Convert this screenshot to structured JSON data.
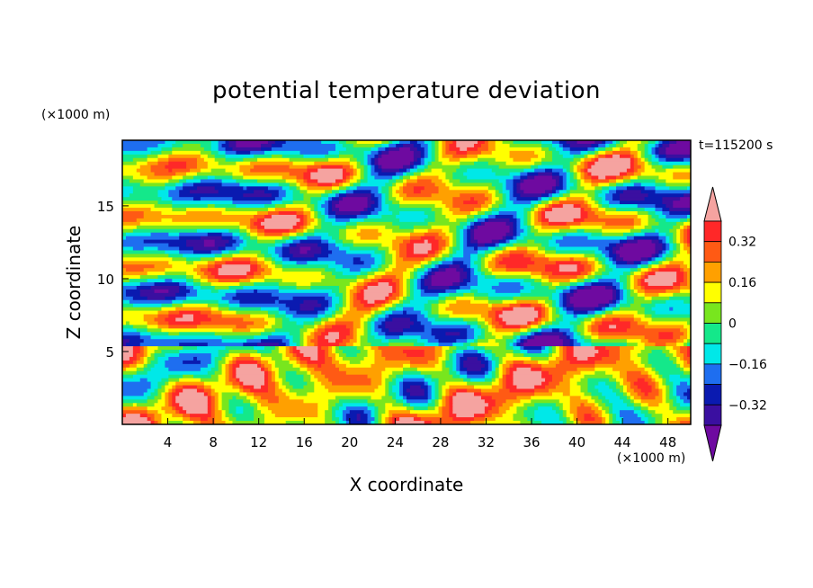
{
  "chart_data": {
    "type": "heatmap",
    "title": "potential temperature deviation",
    "time_label": "t=115200 s",
    "xlabel": "X coordinate",
    "ylabel": "Z coordinate",
    "x_units": "(×1000 m)",
    "y_units": "(×1000 m)",
    "xlim": [
      0,
      50
    ],
    "ylim": [
      0,
      19.5
    ],
    "x_ticks": [
      4,
      8,
      12,
      16,
      20,
      24,
      28,
      32,
      36,
      40,
      44,
      48
    ],
    "y_ticks": [
      5,
      10,
      15
    ],
    "colorbar": {
      "levels": [
        -0.4,
        -0.32,
        -0.24,
        -0.16,
        -0.08,
        0,
        0.08,
        0.16,
        0.24,
        0.32,
        0.4
      ],
      "labeled_levels": [
        0.32,
        0.16,
        0,
        -0.16,
        -0.32
      ],
      "tick_labels": [
        "0.32",
        "0.16",
        "0",
        "−0.16",
        "−0.32"
      ],
      "colors": [
        "#6e0aa0",
        "#3a0fa0",
        "#0a1ab0",
        "#1e6ef0",
        "#00e8e8",
        "#14e88a",
        "#78e61e",
        "#ffff00",
        "#ffa000",
        "#ff5a14",
        "#ff2828",
        "#f5a3a0"
      ],
      "extend": "both"
    },
    "grid": false,
    "notes": "Filled contour field of potential temperature deviation over an X-Z domain."
  }
}
